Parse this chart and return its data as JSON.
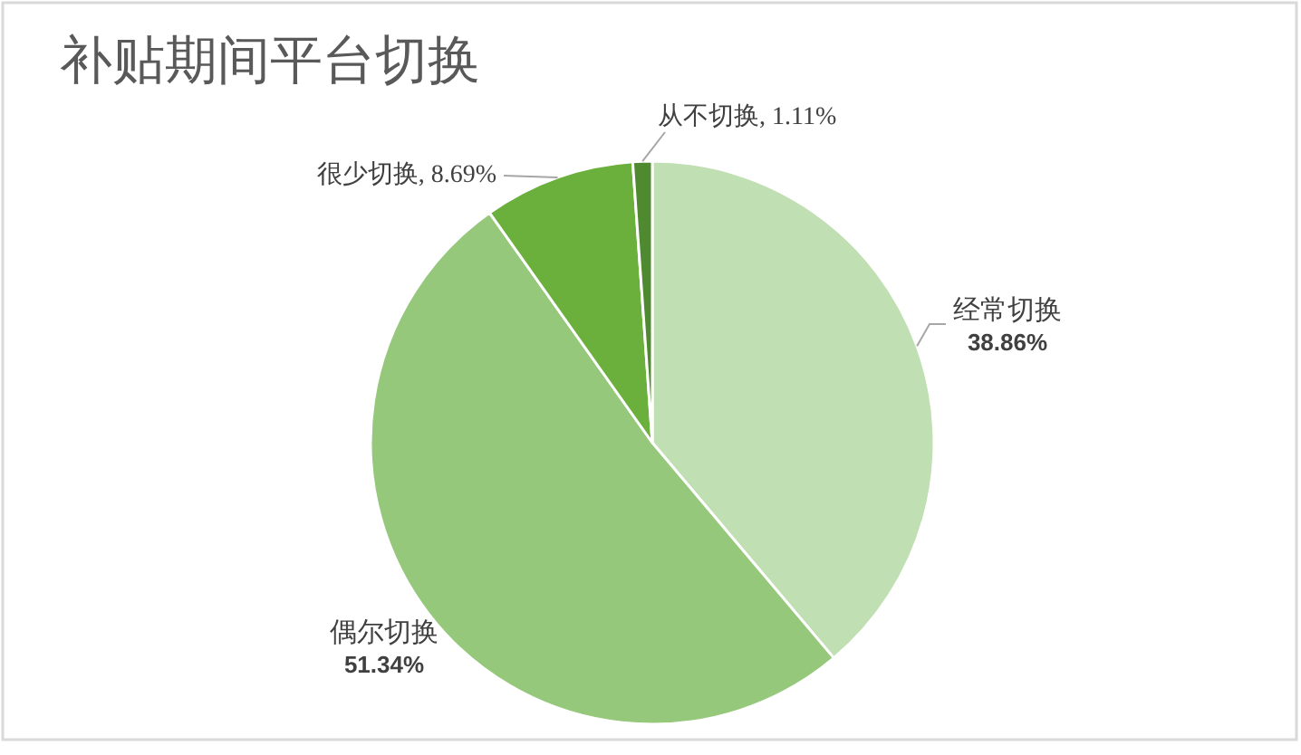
{
  "chart_data": {
    "type": "pie",
    "title": "补贴期间平台切换",
    "categories": [
      "经常切换",
      "偶尔切换",
      "很少切换",
      "从不切换"
    ],
    "values": [
      38.86,
      51.34,
      8.69,
      1.11
    ],
    "value_labels": [
      "38.86%",
      "51.34%",
      "8.69%",
      "1.11%"
    ],
    "colors": [
      "#c0dfb3",
      "#95c87b",
      "#6bb03d",
      "#4f8a30"
    ],
    "legend": false
  }
}
